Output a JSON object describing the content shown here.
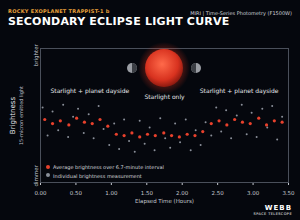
{
  "chart_data": {
    "type": "scatter",
    "supertitle": "ROCKY EXOPLANET TRAPPIST-1 b",
    "title": "SECONDARY ECLIPSE LIGHT CURVE",
    "subtitle": "MIRI | Time-Series Photometry (F1500W)",
    "x_label": "Elapsed Time (Hours)",
    "y_label": "Brightness",
    "y_sublabel": "15-micron emitted light",
    "annotations": [
      "Starlight + planet dayside",
      "Starlight only",
      "Starlight + planet dayside"
    ],
    "credit": "WEBB",
    "credit_sub": "SPACE TELESCOPE",
    "xlim": [
      0,
      3.5
    ],
    "xticks": [
      {
        "value": 0,
        "label": "0.00"
      },
      {
        "value": 0.5,
        "label": "0.50"
      },
      {
        "value": 1,
        "label": "1.00"
      },
      {
        "value": 1.5,
        "label": "1.50"
      },
      {
        "value": 2,
        "label": "2.00"
      },
      {
        "value": 2.5,
        "label": "2.50"
      },
      {
        "value": 3,
        "label": "3.00"
      },
      {
        "value": 3.5,
        "label": "3.50"
      }
    ],
    "ylim": [
      0.9955,
      1.0055
    ],
    "yticks": [
      {
        "value": 0.996,
        "label": "dimmer"
      },
      {
        "value": 1.005,
        "label": "brighter"
      }
    ],
    "legend": "bottom-left",
    "series": [
      {
        "name": "Average brightness over 6.7-minute interval",
        "color": "#e8412c",
        "marker": "dot",
        "x": [
          0.06,
          0.17,
          0.28,
          0.4,
          0.51,
          0.62,
          0.73,
          0.84,
          0.95,
          1.07,
          1.18,
          1.29,
          1.4,
          1.51,
          1.62,
          1.74,
          1.85,
          1.96,
          2.07,
          2.18,
          2.29,
          2.41,
          2.52,
          2.63,
          2.74,
          2.85,
          2.96,
          3.08,
          3.19,
          3.3,
          3.41
        ],
        "values": [
          1.0002,
          0.9999,
          1.0001,
          0.9998,
          1.0003,
          1.0,
          0.9999,
          1.0002,
          0.9997,
          0.9991,
          0.999,
          0.9992,
          0.9989,
          0.9991,
          0.999,
          0.9992,
          0.999,
          0.9989,
          0.9991,
          0.999,
          0.9993,
          0.9999,
          1.0001,
          0.9998,
          1.0002,
          1.0,
          0.9999,
          1.0003,
          0.9998,
          1.0001,
          1.0
        ]
      },
      {
        "name": "Individual brightness measurement",
        "color": "#8a8f99",
        "marker": "dot",
        "x": [
          0.03,
          0.1,
          0.17,
          0.25,
          0.32,
          0.39,
          0.46,
          0.53,
          0.61,
          0.68,
          0.75,
          0.82,
          0.89,
          0.97,
          1.04,
          1.11,
          1.18,
          1.25,
          1.33,
          1.4,
          1.47,
          1.54,
          1.61,
          1.69,
          1.76,
          1.83,
          1.9,
          1.97,
          2.05,
          2.12,
          2.19,
          2.26,
          2.33,
          2.41,
          2.48,
          2.55,
          2.62,
          2.69,
          2.77,
          2.84,
          2.91,
          2.98,
          3.05,
          3.13,
          3.2,
          3.27,
          3.34,
          3.41
        ],
        "values": [
          1.0011,
          0.999,
          1.0008,
          0.9994,
          1.0013,
          0.9989,
          1.0004,
          1.001,
          0.9992,
          1.0006,
          0.9988,
          1.0012,
          0.9995,
          0.9983,
          0.9999,
          0.998,
          1.0002,
          0.9986,
          0.9978,
          1.0001,
          0.9984,
          0.9996,
          0.9979,
          1.0003,
          0.9988,
          0.9981,
          0.9999,
          0.9985,
          1.0002,
          0.9979,
          0.9994,
          0.9983,
          1.0,
          0.999,
          1.0011,
          0.9993,
          1.0009,
          0.9988,
          1.0005,
          1.0013,
          0.9991,
          1.0007,
          0.9989,
          1.001,
          0.9996,
          1.0012,
          0.9987,
          1.0004
        ]
      }
    ]
  }
}
